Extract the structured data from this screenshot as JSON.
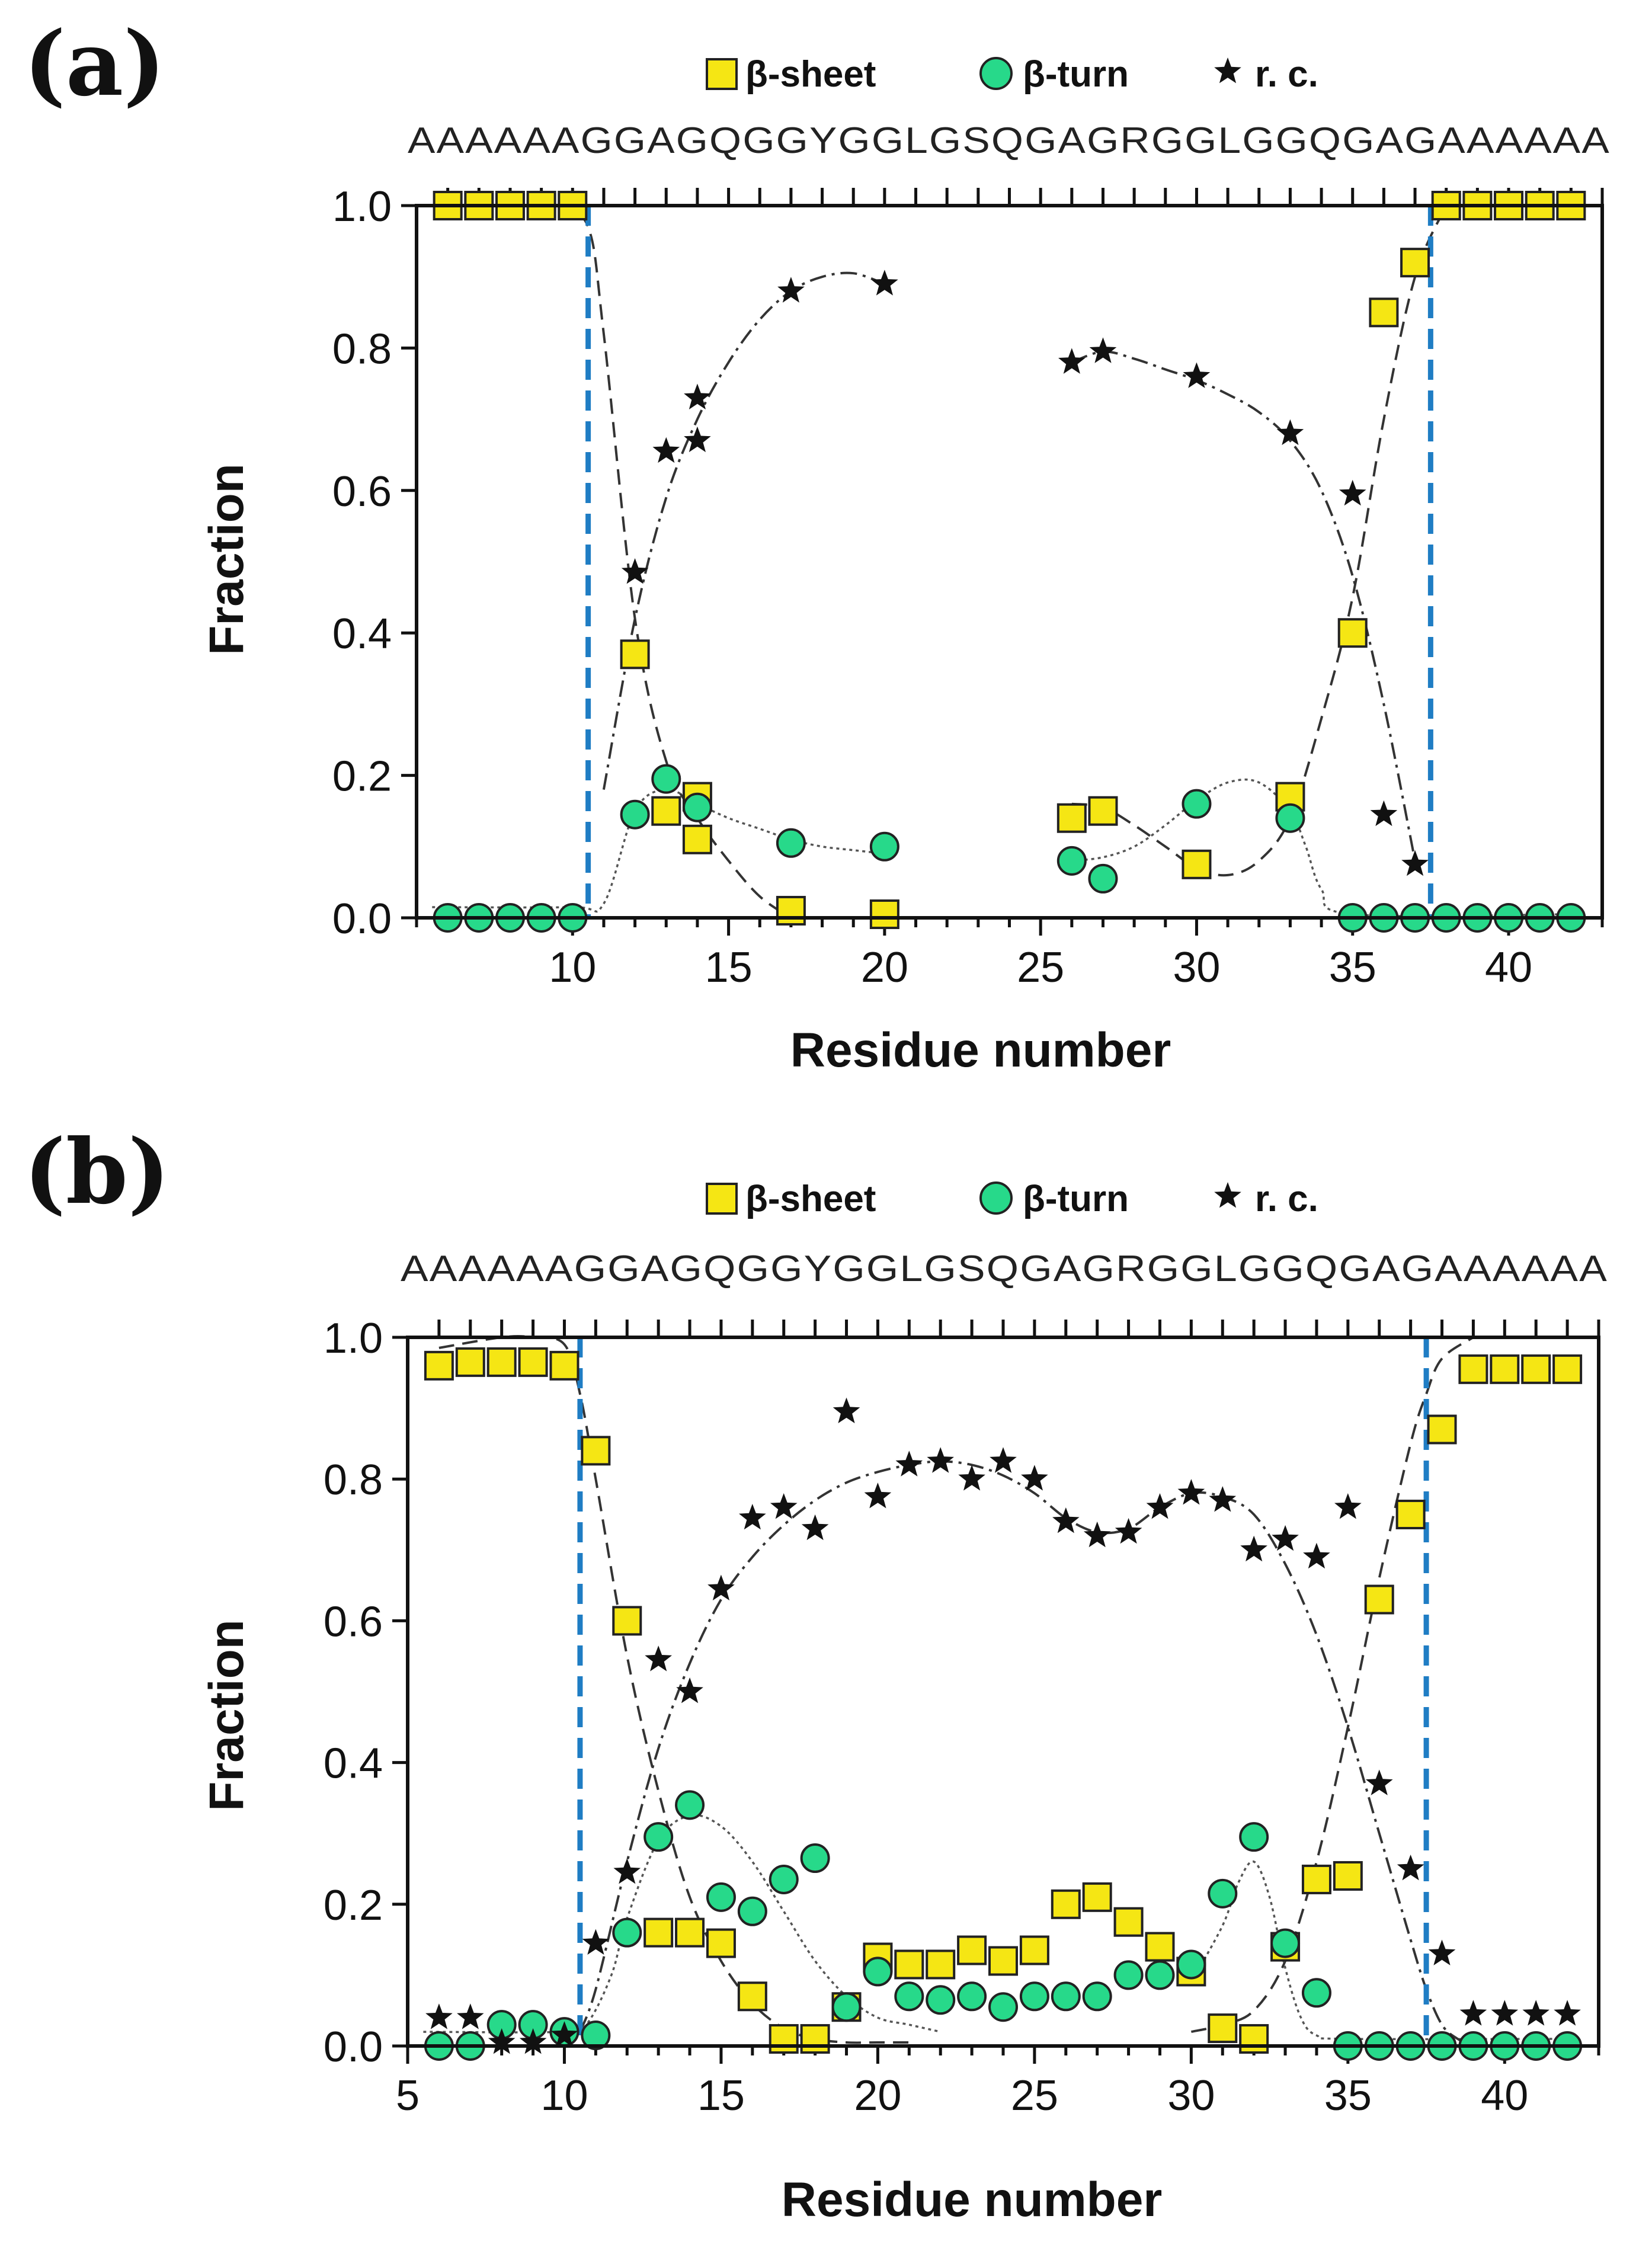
{
  "chart_data": [
    {
      "type": "scatter",
      "panel_label": "(a)",
      "sequence": "AAAAAAGGAGQGGYGGLGSQGAGRGGLGGQGAGAAAAAA",
      "legend": [
        "β-sheet",
        "β-turn",
        "r. c."
      ],
      "xlabel": "Residue number",
      "ylabel": "Fraction",
      "xlim": [
        5,
        43
      ],
      "ylim": [
        0,
        1
      ],
      "xticks": [
        10,
        15,
        20,
        25,
        30,
        35,
        40
      ],
      "xtick_labels": [
        "10",
        "15",
        "20",
        "25",
        "30",
        "35",
        "40"
      ],
      "yticks": [
        0,
        0.2,
        0.4,
        0.6,
        0.8,
        1.0
      ],
      "ytick_labels": [
        "0.0",
        "0.2",
        "0.4",
        "0.6",
        "0.8",
        "1.0"
      ],
      "dividers_x": [
        10.5,
        37.5
      ],
      "series": [
        {
          "name": "β-sheet",
          "marker": "square",
          "x": [
            6,
            7,
            8,
            9,
            10,
            12,
            13,
            14,
            14,
            17,
            20,
            26,
            27,
            30,
            33,
            35,
            36,
            37,
            38,
            39,
            40,
            41,
            42
          ],
          "y": [
            1.0,
            1.0,
            1.0,
            1.0,
            1.0,
            0.37,
            0.15,
            0.17,
            0.11,
            0.01,
            0.005,
            0.14,
            0.15,
            0.075,
            0.17,
            0.4,
            0.85,
            0.92,
            1.0,
            1.0,
            1.0,
            1.0,
            1.0
          ]
        },
        {
          "name": "β-turn",
          "marker": "circle",
          "x": [
            6,
            7,
            8,
            9,
            10,
            12,
            13,
            14,
            17,
            20,
            26,
            27,
            30,
            33,
            35,
            36,
            37,
            38,
            39,
            40,
            41,
            42
          ],
          "y": [
            0,
            0,
            0,
            0,
            0,
            0.145,
            0.195,
            0.155,
            0.105,
            0.1,
            0.08,
            0.055,
            0.16,
            0.14,
            0,
            0,
            0,
            0,
            0,
            0,
            0,
            0
          ]
        },
        {
          "name": "r. c.",
          "marker": "star",
          "x": [
            12,
            13,
            14,
            14,
            17,
            20,
            26,
            27,
            30,
            33,
            35,
            36,
            37
          ],
          "y": [
            0.485,
            0.655,
            0.67,
            0.73,
            0.88,
            0.89,
            0.78,
            0.795,
            0.76,
            0.68,
            0.595,
            0.145,
            0.075
          ]
        }
      ],
      "fits": [
        {
          "name": "β-sheet",
          "segments": [
            {
              "x": [
                9.5,
                10.5,
                11,
                12,
                13,
                14,
                15,
                16,
                17
              ],
              "y": [
                1.0,
                0.97,
                0.82,
                0.42,
                0.22,
                0.14,
                0.08,
                0.03,
                0.0
              ]
            },
            {
              "x": [
                26,
                27,
                28,
                29,
                30,
                31,
                32,
                33,
                34,
                35,
                36,
                37,
                38
              ],
              "y": [
                0.16,
                0.155,
                0.13,
                0.1,
                0.07,
                0.06,
                0.08,
                0.14,
                0.28,
                0.45,
                0.7,
                0.9,
                1.0
              ]
            }
          ]
        },
        {
          "name": "β-turn",
          "segments": [
            {
              "x": [
                5.5,
                10,
                11,
                12,
                13,
                14,
                15,
                16,
                17,
                18,
                19,
                20
              ],
              "y": [
                0.015,
                0.015,
                0.02,
                0.15,
                0.18,
                0.16,
                0.14,
                0.125,
                0.11,
                0.1,
                0.095,
                0.09
              ]
            },
            {
              "x": [
                26,
                27,
                28,
                29,
                30,
                31,
                32,
                33,
                33.5,
                34,
                35,
                42
              ],
              "y": [
                0.08,
                0.085,
                0.1,
                0.13,
                0.165,
                0.19,
                0.19,
                0.15,
                0.1,
                0.04,
                0.005,
                0.005
              ]
            }
          ]
        },
        {
          "name": "r. c.",
          "segments": [
            {
              "x": [
                11,
                12,
                13,
                14,
                15,
                16,
                17,
                18,
                19,
                20
              ],
              "y": [
                0.18,
                0.42,
                0.59,
                0.7,
                0.78,
                0.84,
                0.88,
                0.9,
                0.905,
                0.89
              ]
            },
            {
              "x": [
                26,
                27,
                28,
                29,
                30,
                31,
                32,
                33,
                34,
                35,
                36,
                37
              ],
              "y": [
                0.78,
                0.795,
                0.785,
                0.77,
                0.755,
                0.735,
                0.71,
                0.67,
                0.6,
                0.48,
                0.3,
                0.08
              ]
            }
          ]
        }
      ]
    },
    {
      "type": "scatter",
      "panel_label": "(b)",
      "sequence": "AAAAAAGGAGQGGYGGLGSQGAGRGGLGGQGAGAAAAAA",
      "legend": [
        "β-sheet",
        "β-turn",
        "r. c."
      ],
      "xlabel": "Residue number",
      "ylabel": "Fraction",
      "xlim": [
        5,
        43
      ],
      "ylim": [
        0,
        1
      ],
      "xticks": [
        5,
        10,
        15,
        20,
        25,
        30,
        35,
        40
      ],
      "xtick_labels": [
        "5",
        "10",
        "15",
        "20",
        "25",
        "30",
        "35",
        "40"
      ],
      "yticks": [
        0,
        0.2,
        0.4,
        0.6,
        0.8,
        1.0
      ],
      "ytick_labels": [
        "0.0",
        "0.2",
        "0.4",
        "0.6",
        "0.8",
        "1.0"
      ],
      "dividers_x": [
        10.5,
        37.5
      ],
      "series": [
        {
          "name": "β-sheet",
          "marker": "square",
          "x": [
            6,
            7,
            8,
            9,
            10,
            11,
            12,
            13,
            14,
            15,
            16,
            17,
            18,
            19,
            20,
            21,
            22,
            23,
            24,
            25,
            26,
            27,
            28,
            29,
            30,
            31,
            32,
            33,
            34,
            35,
            36,
            37,
            38,
            39,
            40,
            41,
            42
          ],
          "y": [
            0.96,
            0.965,
            0.965,
            0.965,
            0.96,
            0.84,
            0.6,
            0.16,
            0.16,
            0.145,
            0.07,
            0.01,
            0.01,
            0.055,
            0.125,
            0.115,
            0.115,
            0.135,
            0.12,
            0.135,
            0.2,
            0.21,
            0.175,
            0.14,
            0.105,
            0.025,
            0.01,
            0.14,
            0.235,
            0.24,
            0.63,
            0.75,
            0.87,
            0.955,
            0.955,
            0.955,
            0.955
          ]
        },
        {
          "name": "β-turn",
          "marker": "circle",
          "x": [
            6,
            7,
            8,
            9,
            10,
            11,
            12,
            13,
            14,
            15,
            16,
            17,
            18,
            19,
            20,
            21,
            22,
            23,
            24,
            25,
            26,
            27,
            28,
            29,
            30,
            31,
            32,
            33,
            34,
            35,
            36,
            37,
            38,
            39,
            40,
            41,
            42
          ],
          "y": [
            0,
            0,
            0.03,
            0.03,
            0.02,
            0.015,
            0.16,
            0.295,
            0.34,
            0.21,
            0.19,
            0.235,
            0.265,
            0.055,
            0.105,
            0.07,
            0.065,
            0.07,
            0.055,
            0.07,
            0.07,
            0.07,
            0.1,
            0.1,
            0.115,
            0.215,
            0.295,
            0.145,
            0.075,
            0,
            0,
            0,
            0,
            0,
            0,
            0,
            0
          ]
        },
        {
          "name": "r. c.",
          "marker": "star",
          "x": [
            6,
            7,
            8,
            9,
            10,
            11,
            12,
            13,
            14,
            15,
            16,
            17,
            18,
            19,
            20,
            21,
            22,
            23,
            24,
            25,
            26,
            27,
            28,
            29,
            30,
            31,
            32,
            33,
            34,
            35,
            36,
            37,
            38,
            39,
            40,
            41,
            42
          ],
          "y": [
            0.04,
            0.04,
            0.005,
            0.005,
            0.015,
            0.145,
            0.245,
            0.545,
            0.5,
            0.645,
            0.745,
            0.76,
            0.73,
            0.895,
            0.775,
            0.82,
            0.825,
            0.8,
            0.825,
            0.8,
            0.74,
            0.72,
            0.725,
            0.76,
            0.78,
            0.77,
            0.7,
            0.715,
            0.69,
            0.76,
            0.37,
            0.25,
            0.13,
            0.045,
            0.045,
            0.045,
            0.045
          ]
        }
      ],
      "fits": [
        {
          "name": "β-sheet",
          "segments": [
            {
              "x": [
                6,
                8,
                9,
                10,
                10.5,
                11,
                12,
                13,
                14,
                15,
                16,
                17,
                18,
                19,
                20,
                21
              ],
              "y": [
                0.985,
                1.0,
                1.0,
                0.99,
                0.92,
                0.8,
                0.55,
                0.36,
                0.21,
                0.12,
                0.06,
                0.025,
                0.01,
                0.005,
                0.005,
                0.005
              ]
            },
            {
              "x": [
                30,
                31,
                32,
                33,
                34,
                35,
                36,
                37,
                37.5,
                38,
                39
              ],
              "y": [
                0.02,
                0.03,
                0.05,
                0.12,
                0.26,
                0.45,
                0.66,
                0.85,
                0.92,
                0.97,
                1.0
              ]
            }
          ]
        },
        {
          "name": "β-turn",
          "segments": [
            {
              "x": [
                5.5,
                10,
                10.7,
                11.5,
                12,
                13,
                14,
                15,
                16,
                17,
                18,
                19,
                20,
                21,
                22
              ],
              "y": [
                0.02,
                0.02,
                0.03,
                0.1,
                0.18,
                0.29,
                0.325,
                0.31,
                0.26,
                0.19,
                0.12,
                0.07,
                0.04,
                0.03,
                0.02
              ]
            },
            {
              "x": [
                30,
                31,
                31.5,
                32,
                32.5,
                33,
                33.5,
                34,
                35,
                42
              ],
              "y": [
                0.09,
                0.17,
                0.23,
                0.26,
                0.21,
                0.11,
                0.04,
                0.015,
                0.01,
                0.01
              ]
            }
          ]
        },
        {
          "name": "r. c.",
          "segments": [
            {
              "x": [
                10.5,
                11,
                12,
                13,
                14,
                15,
                16,
                17,
                18,
                19,
                20,
                21,
                22,
                23,
                24,
                25,
                26,
                27,
                28,
                29,
                30,
                31,
                32,
                33,
                34,
                35,
                36,
                37,
                37.5,
                38,
                38.5,
                39
              ],
              "y": [
                0.02,
                0.08,
                0.26,
                0.42,
                0.54,
                0.63,
                0.69,
                0.735,
                0.77,
                0.795,
                0.81,
                0.82,
                0.825,
                0.82,
                0.805,
                0.78,
                0.745,
                0.725,
                0.73,
                0.76,
                0.78,
                0.775,
                0.75,
                0.68,
                0.58,
                0.45,
                0.3,
                0.15,
                0.08,
                0.03,
                0.01,
                0.0
              ]
            }
          ]
        }
      ]
    }
  ]
}
